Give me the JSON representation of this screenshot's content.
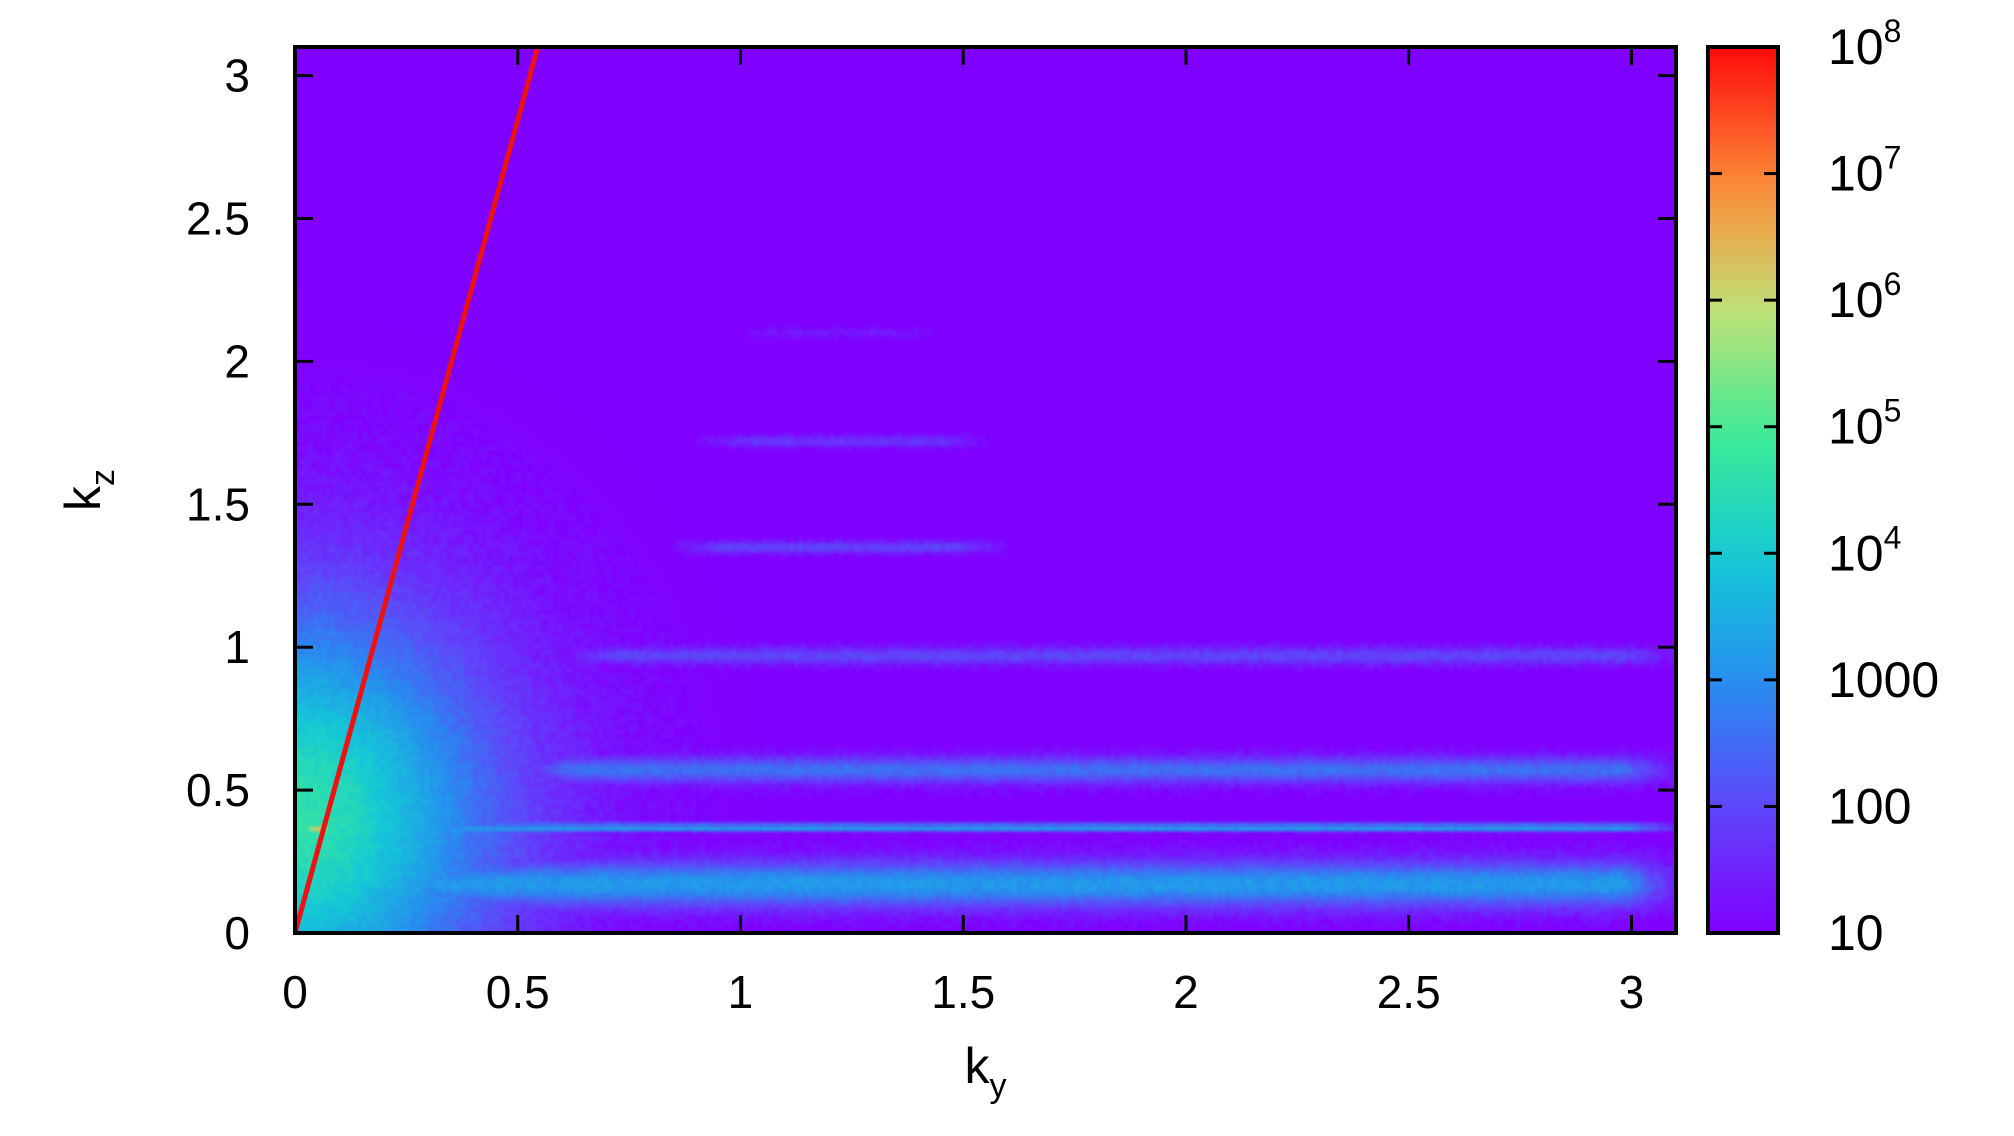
{
  "chart_data": {
    "type": "heatmap",
    "xlabel": {
      "base": "k",
      "sub": "y"
    },
    "ylabel": {
      "base": "k",
      "sub": "z"
    },
    "xlim": [
      0,
      3.1
    ],
    "ylim": [
      0,
      3.1
    ],
    "x_ticks": [
      {
        "value": 0,
        "label": "0"
      },
      {
        "value": 0.5,
        "label": "0.5"
      },
      {
        "value": 1,
        "label": "1"
      },
      {
        "value": 1.5,
        "label": "1.5"
      },
      {
        "value": 2,
        "label": "2"
      },
      {
        "value": 2.5,
        "label": "2.5"
      },
      {
        "value": 3,
        "label": "3"
      }
    ],
    "y_ticks": [
      {
        "value": 0,
        "label": "0"
      },
      {
        "value": 0.5,
        "label": "0.5"
      },
      {
        "value": 1,
        "label": "1"
      },
      {
        "value": 1.5,
        "label": "1.5"
      },
      {
        "value": 2,
        "label": "2"
      },
      {
        "value": 2.5,
        "label": "2.5"
      },
      {
        "value": 3,
        "label": "3"
      }
    ],
    "colorbar": {
      "scale": "log",
      "range": [
        10,
        100000000
      ],
      "colormap": "rainbow (violet to red)",
      "ticks": [
        {
          "value": 10,
          "base": "10",
          "sup": ""
        },
        {
          "value": 100,
          "base": "100",
          "sup": ""
        },
        {
          "value": 1000,
          "base": "1000",
          "sup": ""
        },
        {
          "value": 10000,
          "base": "10",
          "sup": "4"
        },
        {
          "value": 100000,
          "base": "10",
          "sup": "5"
        },
        {
          "value": 1000000,
          "base": "10",
          "sup": "6"
        },
        {
          "value": 10000000,
          "base": "10",
          "sup": "7"
        },
        {
          "value": 100000000,
          "base": "10",
          "sup": "8"
        }
      ]
    },
    "background_value": 10,
    "features": [
      {
        "kind": "horizontal-band",
        "kz": 0.37,
        "ky_from": 0,
        "ky_to": 3.1,
        "peak_log10": 3.7,
        "width": 0.012
      },
      {
        "kind": "horizontal-band",
        "kz": 0.17,
        "ky_from": 0,
        "ky_to": 3.1,
        "peak_log10": 3.2,
        "width": 0.08
      },
      {
        "kind": "horizontal-band",
        "kz": 0.57,
        "ky_from": 0.5,
        "ky_to": 3.1,
        "peak_log10": 2.6,
        "width": 0.045
      },
      {
        "kind": "horizontal-band",
        "kz": 0.97,
        "ky_from": 0.6,
        "ky_to": 3.1,
        "peak_log10": 2.0,
        "width": 0.03
      },
      {
        "kind": "horizontal-band",
        "kz": 1.35,
        "ky_from": 0.85,
        "ky_to": 1.6,
        "peak_log10": 2.0,
        "width": 0.02
      },
      {
        "kind": "horizontal-band",
        "kz": 1.72,
        "ky_from": 0.9,
        "ky_to": 1.55,
        "peak_log10": 1.8,
        "width": 0.018
      },
      {
        "kind": "horizontal-band",
        "kz": 2.1,
        "ky_from": 1.0,
        "ky_to": 1.45,
        "peak_log10": 1.4,
        "width": 0.015
      },
      {
        "kind": "peak",
        "ky": 0.05,
        "kz": 0.37,
        "peak_log10": 7.8
      },
      {
        "kind": "glow",
        "ky": 0.0,
        "kz": 0.4,
        "peak_log10": 4.6
      }
    ],
    "overlay_line": {
      "color": "#ee1111",
      "points": [
        [
          0,
          0
        ],
        [
          0.545,
          3.1
        ]
      ]
    }
  }
}
